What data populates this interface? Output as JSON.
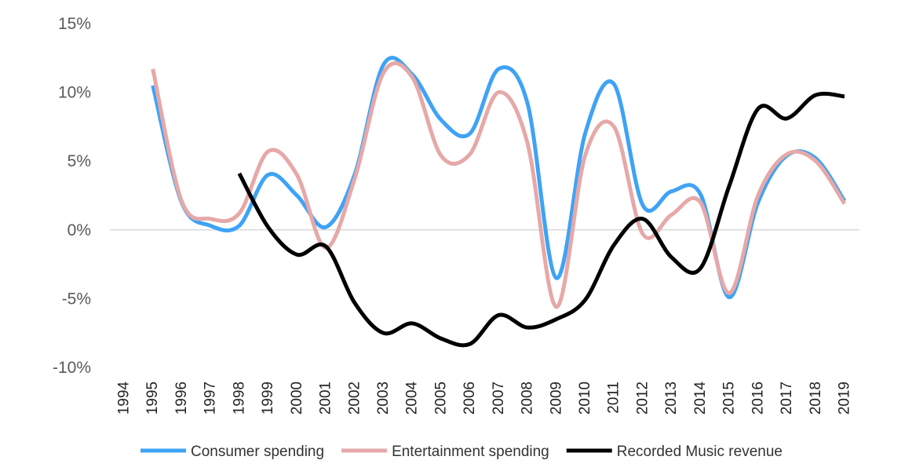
{
  "chart_data": {
    "type": "line",
    "title": "",
    "xlabel": "",
    "ylabel": "",
    "x": [
      "1994",
      "1995",
      "1996",
      "1997",
      "1998",
      "1999",
      "2000",
      "2001",
      "2002",
      "2003",
      "2004",
      "2005",
      "2006",
      "2007",
      "2008",
      "2009",
      "2010",
      "2011",
      "2012",
      "2013",
      "2014",
      "2015",
      "2016",
      "2017",
      "2018",
      "2019"
    ],
    "ylim": [
      -10,
      15
    ],
    "y_ticks": [
      15,
      10,
      5,
      0,
      -5,
      -10
    ],
    "y_tick_labels": [
      "15%",
      "10%",
      "5%",
      "0%",
      "-5%",
      "-10%"
    ],
    "zero_line": true,
    "grid": false,
    "legend_position": "bottom",
    "series": [
      {
        "name": "Consumer spending",
        "color": "#3fa3f5",
        "values": [
          null,
          10.5,
          2.0,
          0.3,
          0.3,
          4.0,
          2.5,
          0.2,
          4.0,
          12.0,
          11.3,
          8.0,
          7.0,
          11.7,
          9.2,
          -3.5,
          7.0,
          10.6,
          1.8,
          2.8,
          2.6,
          -4.9,
          2.0,
          5.4,
          5.2,
          2.1
        ]
      },
      {
        "name": "Entertainment spending",
        "color": "#e6a8a8",
        "values": [
          null,
          11.7,
          2.1,
          0.8,
          1.2,
          5.7,
          4.0,
          -1.3,
          3.7,
          11.4,
          11.1,
          5.4,
          5.5,
          10.0,
          6.3,
          -5.6,
          5.4,
          7.5,
          -0.3,
          1.1,
          2.0,
          -4.6,
          2.5,
          5.5,
          5.0,
          1.9
        ]
      },
      {
        "name": "Recorded Music revenue",
        "color": "#000000",
        "values": [
          null,
          null,
          null,
          null,
          4.1,
          0.2,
          -1.8,
          -1.2,
          -5.3,
          -7.5,
          -6.8,
          -7.9,
          -8.3,
          -6.2,
          -7.1,
          -6.5,
          -5.1,
          -1.1,
          0.8,
          -2.0,
          -2.8,
          3.2,
          8.8,
          8.1,
          9.8,
          9.7
        ]
      }
    ]
  }
}
